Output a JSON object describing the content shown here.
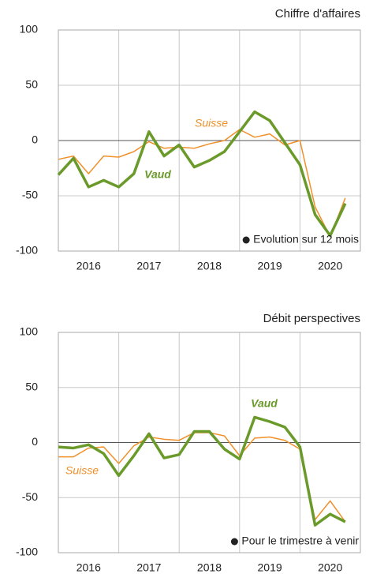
{
  "chart_data": [
    {
      "type": "line",
      "title": "Chiffre d'affaires",
      "note": "Evolution sur 12 mois",
      "x": [
        2016,
        2016.25,
        2016.5,
        2016.75,
        2017,
        2017.25,
        2017.5,
        2017.75,
        2018,
        2018.25,
        2018.5,
        2018.75,
        2019,
        2019.25,
        2019.5,
        2019.75,
        2020,
        2020.25,
        2020.5,
        2020.75
      ],
      "xlim": [
        2016,
        2021
      ],
      "xticks": [
        {
          "value": 2016.5,
          "label": "2016"
        },
        {
          "value": 2017.5,
          "label": "2017"
        },
        {
          "value": 2018.5,
          "label": "2018"
        },
        {
          "value": 2019.5,
          "label": "2019"
        },
        {
          "value": 2020.5,
          "label": "2020"
        }
      ],
      "ylim": [
        -100,
        100
      ],
      "yticks": [
        -100,
        -50,
        0,
        50,
        100
      ],
      "grid": true,
      "series": [
        {
          "name": "Suisse",
          "color": "#f0902a",
          "values": [
            -17,
            -14,
            -30,
            -14,
            -15,
            -10,
            -1,
            -7,
            -6,
            -7,
            -3,
            0,
            10,
            3,
            6,
            -4,
            0,
            -60,
            -87,
            -52
          ]
        },
        {
          "name": "Vaud",
          "color": "#6a9a2a",
          "values": [
            -31,
            -16,
            -42,
            -36,
            -42,
            -30,
            8,
            -14,
            -4,
            -24,
            -18,
            -10,
            8,
            26,
            18,
            -2,
            -22,
            -67,
            -86,
            -57
          ]
        }
      ]
    },
    {
      "type": "line",
      "title": "Débit perspectives",
      "note": "Pour le trimestre à venir",
      "x": [
        2016,
        2016.25,
        2016.5,
        2016.75,
        2017,
        2017.25,
        2017.5,
        2017.75,
        2018,
        2018.25,
        2018.5,
        2018.75,
        2019,
        2019.25,
        2019.5,
        2019.75,
        2020,
        2020.25,
        2020.5,
        2020.75
      ],
      "xlim": [
        2016,
        2021
      ],
      "xticks": [
        {
          "value": 2016.5,
          "label": "2016"
        },
        {
          "value": 2017.5,
          "label": "2017"
        },
        {
          "value": 2018.5,
          "label": "2018"
        },
        {
          "value": 2019.5,
          "label": "2019"
        },
        {
          "value": 2020.5,
          "label": "2020"
        }
      ],
      "ylim": [
        -100,
        100
      ],
      "yticks": [
        -100,
        -50,
        0,
        50,
        100
      ],
      "grid": true,
      "series": [
        {
          "name": "Suisse",
          "color": "#f0902a",
          "values": [
            -13,
            -13,
            -5,
            -4,
            -19,
            -3,
            5,
            3,
            2,
            9,
            9,
            6,
            -12,
            4,
            5,
            2,
            -6,
            -70,
            -53,
            -72
          ]
        },
        {
          "name": "Vaud",
          "color": "#6a9a2a",
          "values": [
            -4,
            -5,
            -2,
            -10,
            -30,
            -12,
            8,
            -14,
            -11,
            10,
            10,
            -6,
            -15,
            23,
            19,
            14,
            -4,
            -75,
            -65,
            -72
          ]
        }
      ]
    }
  ]
}
